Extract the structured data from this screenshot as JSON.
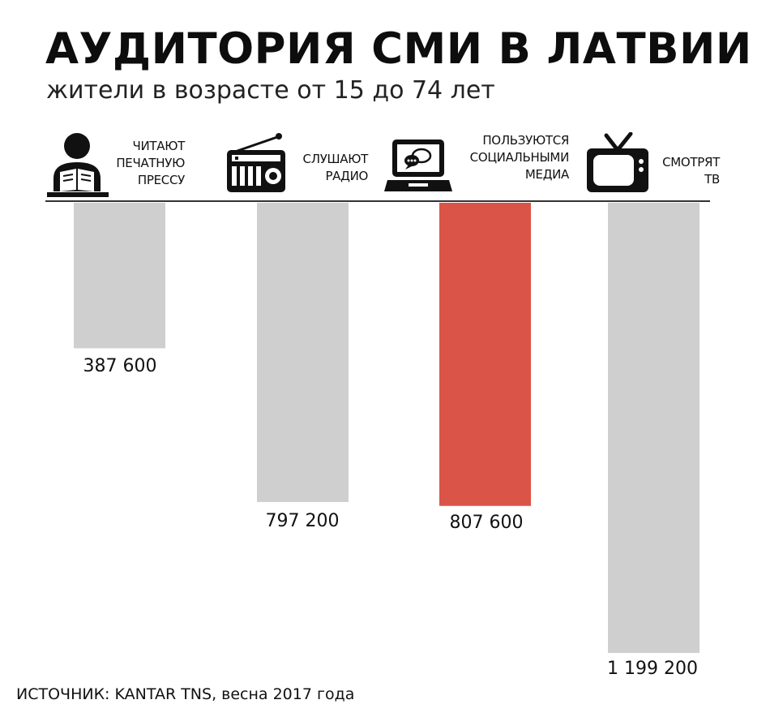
{
  "title": "АУДИТОРИЯ СМИ В ЛАТВИИ",
  "subtitle": "жители в возрасте от 15 до 74 лет",
  "source": "ИСТОЧНИК: KANTAR TNS, весна 2017 года",
  "colors": {
    "default_bar": "#cfcfcf",
    "highlight_bar": "#db5448",
    "axis": "#333333",
    "icon": "#111111"
  },
  "icons": [
    "reader-icon",
    "radio-icon",
    "laptop-chat-icon",
    "tv-icon"
  ],
  "chart_data": {
    "type": "bar",
    "orientation": "vertical-downward",
    "categories": [
      [
        "Читают",
        "печатную",
        "прессу"
      ],
      [
        "Слушают",
        "радио"
      ],
      [
        "Пользуются",
        "социальными",
        "медиа"
      ],
      [
        "Смотрят",
        "ТВ"
      ]
    ],
    "values": [
      387600,
      797200,
      807600,
      1199200
    ],
    "value_labels": [
      "387 600",
      "797 200",
      "807 600",
      "1 199 200"
    ],
    "highlight_index": 2,
    "ylim": [
      0,
      1199200
    ]
  }
}
